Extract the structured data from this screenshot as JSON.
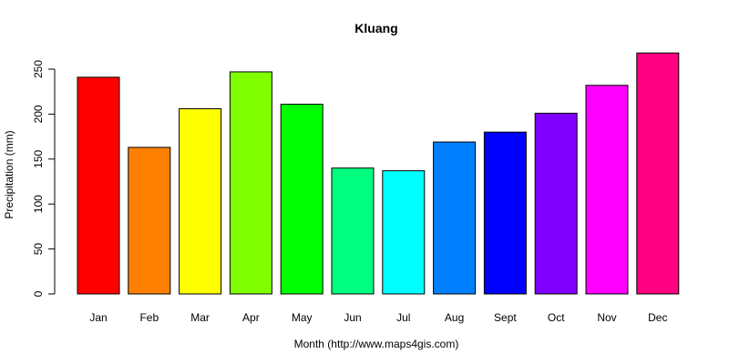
{
  "chart_data": {
    "type": "bar",
    "title": "Kluang",
    "xlabel": "Month (http://www.maps4gis.com)",
    "ylabel": "Precipitation (mm)",
    "ylim": [
      0,
      270
    ],
    "yticks": [
      0,
      50,
      100,
      150,
      200,
      250
    ],
    "categories": [
      "Jan",
      "Feb",
      "Mar",
      "Apr",
      "May",
      "Jun",
      "Jul",
      "Aug",
      "Sept",
      "Oct",
      "Nov",
      "Dec"
    ],
    "values": [
      241,
      163,
      206,
      247,
      211,
      140,
      137,
      169,
      180,
      201,
      232,
      268
    ],
    "colors": [
      "#FF0000",
      "#FF8000",
      "#FFFF00",
      "#80FF00",
      "#00FF00",
      "#00FF80",
      "#00FFFF",
      "#0080FF",
      "#0000FF",
      "#8000FF",
      "#FF00FF",
      "#FF0080"
    ],
    "grid": false,
    "legend": "none"
  }
}
